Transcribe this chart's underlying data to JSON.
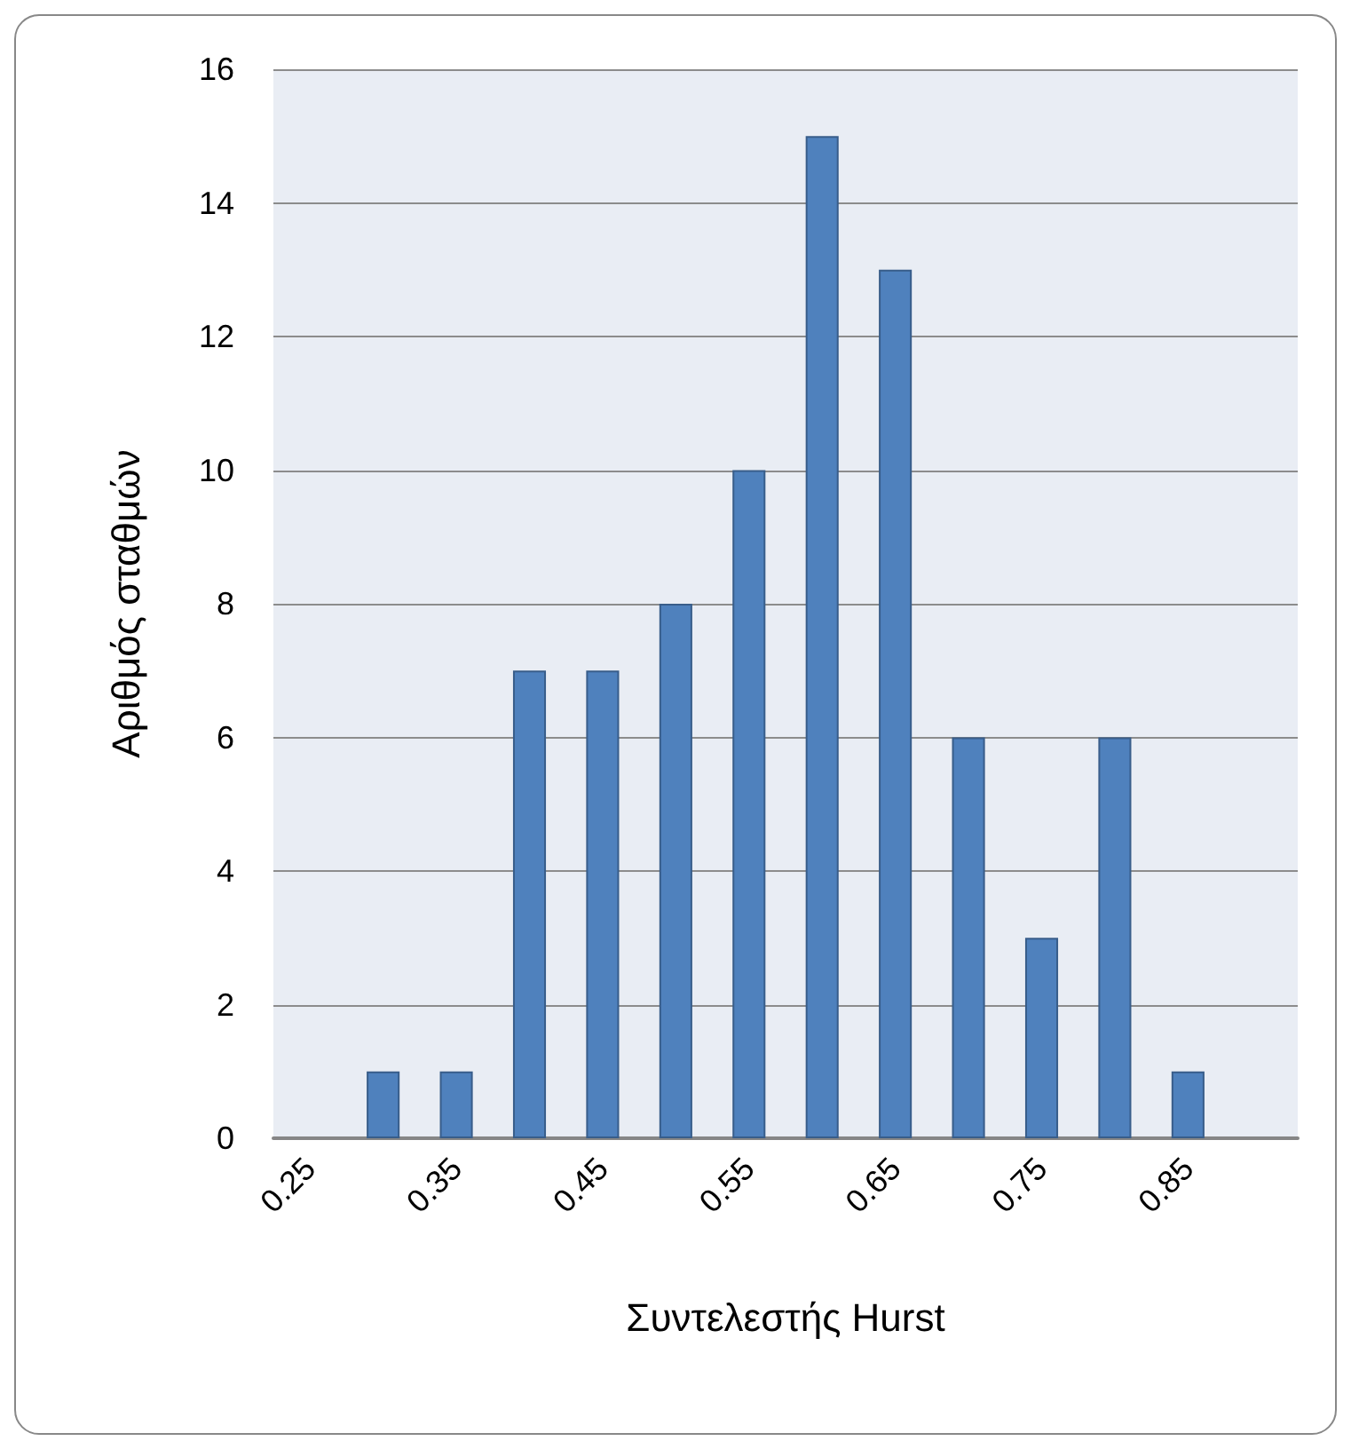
{
  "chart_data": {
    "type": "bar",
    "xlabel": "Συντελεστής Hurst",
    "ylabel": "Αριθμός σταθμών",
    "categories": [
      "0.25",
      null,
      "0.35",
      null,
      "0.45",
      null,
      "0.55",
      null,
      "0.65",
      null,
      "0.75",
      null,
      "0.85",
      null
    ],
    "values": [
      0,
      1,
      1,
      7,
      7,
      8,
      10,
      15,
      13,
      6,
      3,
      6,
      1,
      0
    ],
    "color": "#4f81bd",
    "ylim": [
      0,
      16
    ],
    "yticks": [
      0,
      2,
      4,
      6,
      8,
      10,
      12,
      14,
      16
    ],
    "grid": "y"
  }
}
